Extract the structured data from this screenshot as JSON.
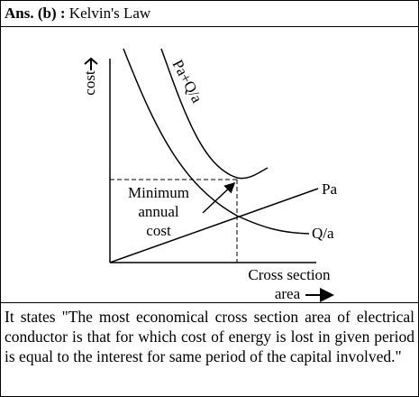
{
  "header": {
    "label": "Ans. (b) :",
    "title": "Kelvin's Law"
  },
  "diagram": {
    "y_label": "cost",
    "total_curve": "Pa+Q/a",
    "line_label": "Pa",
    "curve_label": "Q/a",
    "minimum_label": [
      "Minimum",
      "annual",
      "cost"
    ],
    "x_label": [
      "Cross section",
      "area"
    ]
  },
  "paragraph": "It states \"The most economical cross section area of electrical conductor is that for which cost of energy is lost in given period is equal to the interest for same period of the capital involved.\""
}
